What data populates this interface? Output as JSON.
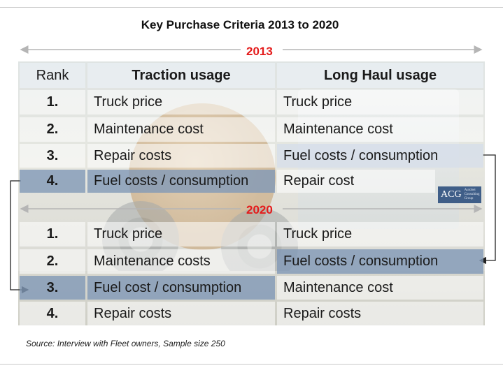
{
  "title": "Key Purchase Criteria 2013 to 2020",
  "headers": {
    "rank": "Rank",
    "traction": "Traction usage",
    "long_haul": "Long Haul usage"
  },
  "sections": [
    {
      "year": "2013",
      "rows": [
        {
          "rank": "1.",
          "traction": "Truck price",
          "long_haul": "Truck price"
        },
        {
          "rank": "2.",
          "traction": "Maintenance cost",
          "long_haul": "Maintenance cost"
        },
        {
          "rank": "3.",
          "traction": "Repair costs",
          "long_haul": "Fuel costs / consumption"
        },
        {
          "rank": "4.",
          "traction": "Fuel costs / consumption",
          "long_haul": "Repair cost"
        }
      ]
    },
    {
      "year": "2020",
      "rows": [
        {
          "rank": "1.",
          "traction": "Truck price",
          "long_haul": "Truck price"
        },
        {
          "rank": "2.",
          "traction": "Maintenance costs",
          "long_haul": "Fuel costs / consumption"
        },
        {
          "rank": "3.",
          "traction": "Fuel cost / consumption",
          "long_haul": "Maintenance cost"
        },
        {
          "rank": "4.",
          "traction": "Repair costs",
          "long_haul": "Repair costs"
        }
      ]
    }
  ],
  "logo": {
    "abbr": "ACG",
    "name": "Autobei Consulting Group"
  },
  "source": "Source: Interview with Fleet owners, Sample size 250",
  "colors": {
    "year_label": "#e41b1b",
    "highlight_dark": "#8198b6",
    "highlight_light": "#d6deea",
    "arrow": "#222222",
    "logo_bg": "#3f5e88"
  }
}
